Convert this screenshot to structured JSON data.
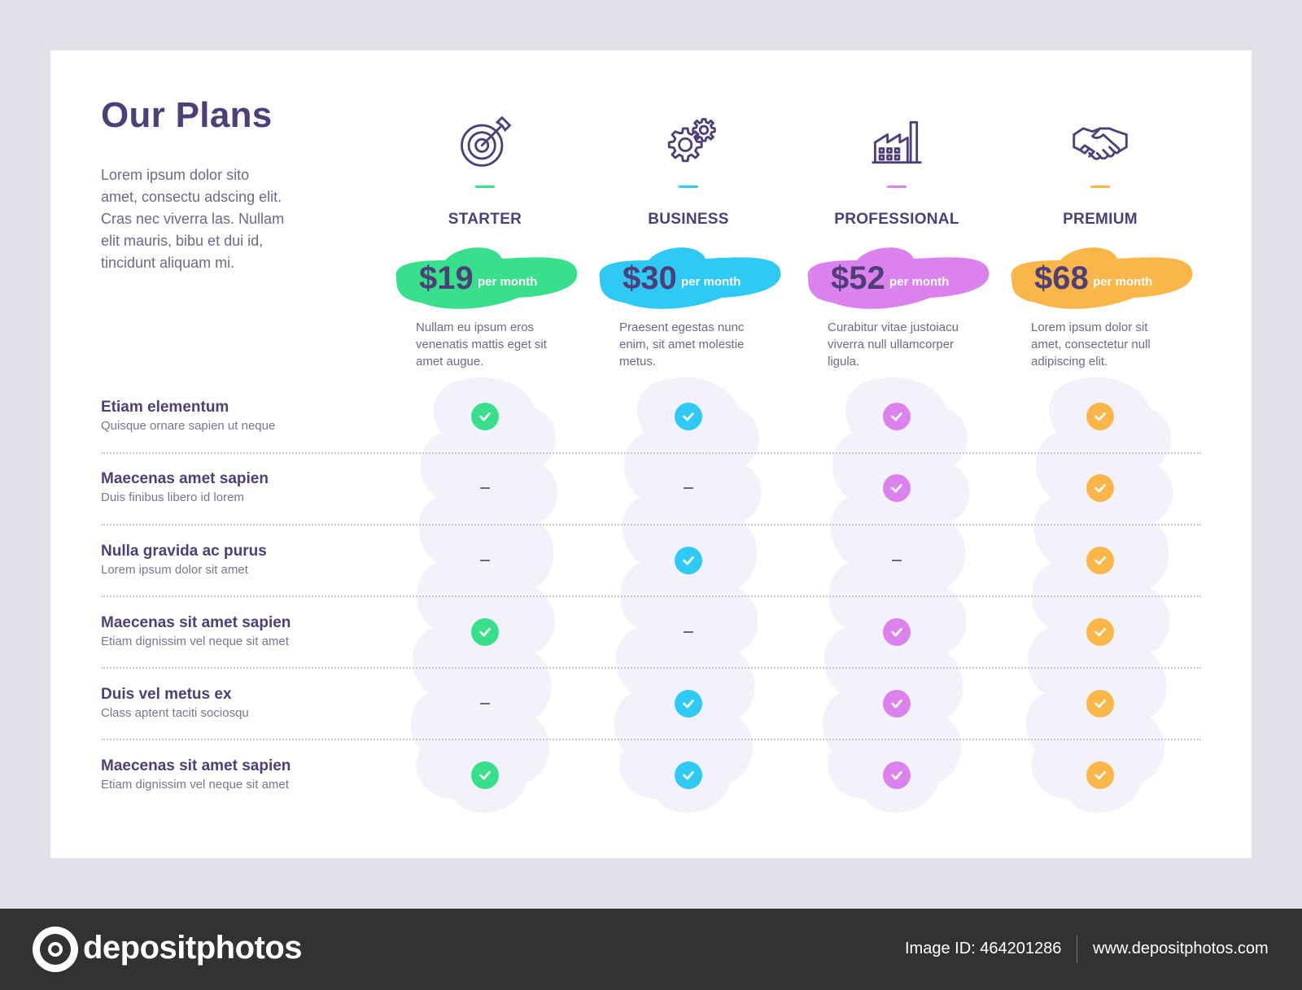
{
  "header": {
    "title": "Our Plans",
    "intro": "Lorem ipsum dolor sito amet, consectu adscing elit. Cras nec viverra las. Nullam elit mauris, bibu et dui id, tincidunt aliquam mi."
  },
  "plans": [
    {
      "name": "STARTER",
      "price": "$19",
      "per": "per month",
      "desc": "Nullam eu ipsum eros venenatis mattis eget sit amet augue.",
      "color": "#38e08c",
      "icon": "target-icon"
    },
    {
      "name": "BUSINESS",
      "price": "$30",
      "per": "per month",
      "desc": "Praesent egestas nunc enim, sit amet molestie metus.",
      "color": "#2ec9f5",
      "icon": "gears-icon"
    },
    {
      "name": "PROFESSIONAL",
      "price": "$52",
      "per": "per month",
      "desc": "Curabitur vitae justoiacu viverra null ullamcorper ligula.",
      "color": "#dc82ee",
      "icon": "factory-icon"
    },
    {
      "name": "PREMIUM",
      "price": "$68",
      "per": "per month",
      "desc": "Lorem ipsum dolor sit amet, consectetur null adipiscing elit.",
      "color": "#fbb64a",
      "icon": "handshake-icon"
    }
  ],
  "features": [
    {
      "name": "Etiam elementum",
      "sub": "Quisque ornare sapien ut neque",
      "avail": [
        true,
        true,
        true,
        true
      ]
    },
    {
      "name": "Maecenas amet sapien",
      "sub": "Duis finibus libero id lorem",
      "avail": [
        false,
        false,
        true,
        true
      ]
    },
    {
      "name": "Nulla gravida ac purus",
      "sub": "Lorem ipsum dolor sit amet",
      "avail": [
        false,
        true,
        false,
        true
      ]
    },
    {
      "name": "Maecenas sit amet sapien",
      "sub": "Etiam dignissim vel neque sit amet",
      "avail": [
        true,
        false,
        true,
        true
      ]
    },
    {
      "name": "Duis vel metus ex",
      "sub": "Class aptent taciti sociosqu",
      "avail": [
        false,
        true,
        true,
        true
      ]
    },
    {
      "name": "Maecenas sit amet sapien",
      "sub": "Etiam dignissim vel neque sit amet",
      "avail": [
        true,
        true,
        true,
        true
      ]
    }
  ],
  "footer": {
    "brand": "depositphotos",
    "image_id": "Image ID: 464201286",
    "site": "www.depositphotos.com"
  },
  "colors": {
    "heading": "#4e3f78",
    "text": "#6e6889",
    "blob_bg": "#f3f2fa"
  }
}
